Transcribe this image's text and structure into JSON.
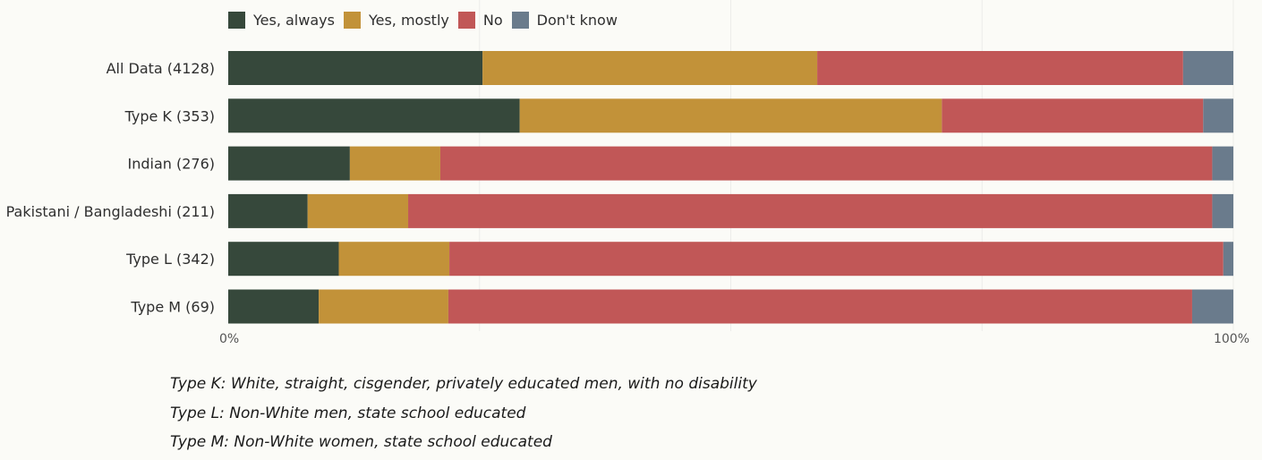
{
  "chart_data": {
    "type": "bar",
    "orientation": "horizontal",
    "stacked": true,
    "categories": [
      "All Data (4128)",
      "Type K (353)",
      "Indian (276)",
      "Pakistani / Bangladeshi (211)",
      "Type L (342)",
      "Type M (69)"
    ],
    "series": [
      {
        "name": "Yes, always",
        "color": "#36483b",
        "values": [
          25.3,
          29.0,
          12.1,
          7.9,
          11.0,
          9.0
        ]
      },
      {
        "name": "Yes, mostly",
        "color": "#c29239",
        "values": [
          33.3,
          42.0,
          9.0,
          10.0,
          11.0,
          12.9
        ]
      },
      {
        "name": "No",
        "color": "#c15757",
        "values": [
          36.4,
          26.0,
          76.8,
          80.0,
          77.0,
          74.0
        ]
      },
      {
        "name": "Don't know",
        "color": "#6a7b8c",
        "values": [
          5.0,
          3.0,
          2.1,
          2.1,
          1.0,
          4.1
        ]
      }
    ],
    "xlim": [
      0,
      100
    ],
    "x_ticks": [
      "0%",
      "100%"
    ],
    "grid": true,
    "legend_position": "top-left"
  },
  "notes": [
    "Type K: White, straight, cisgender, privately educated men, with no disability",
    "Type L: Non-White men, state school educated",
    "Type M: Non-White women, state school educated"
  ]
}
